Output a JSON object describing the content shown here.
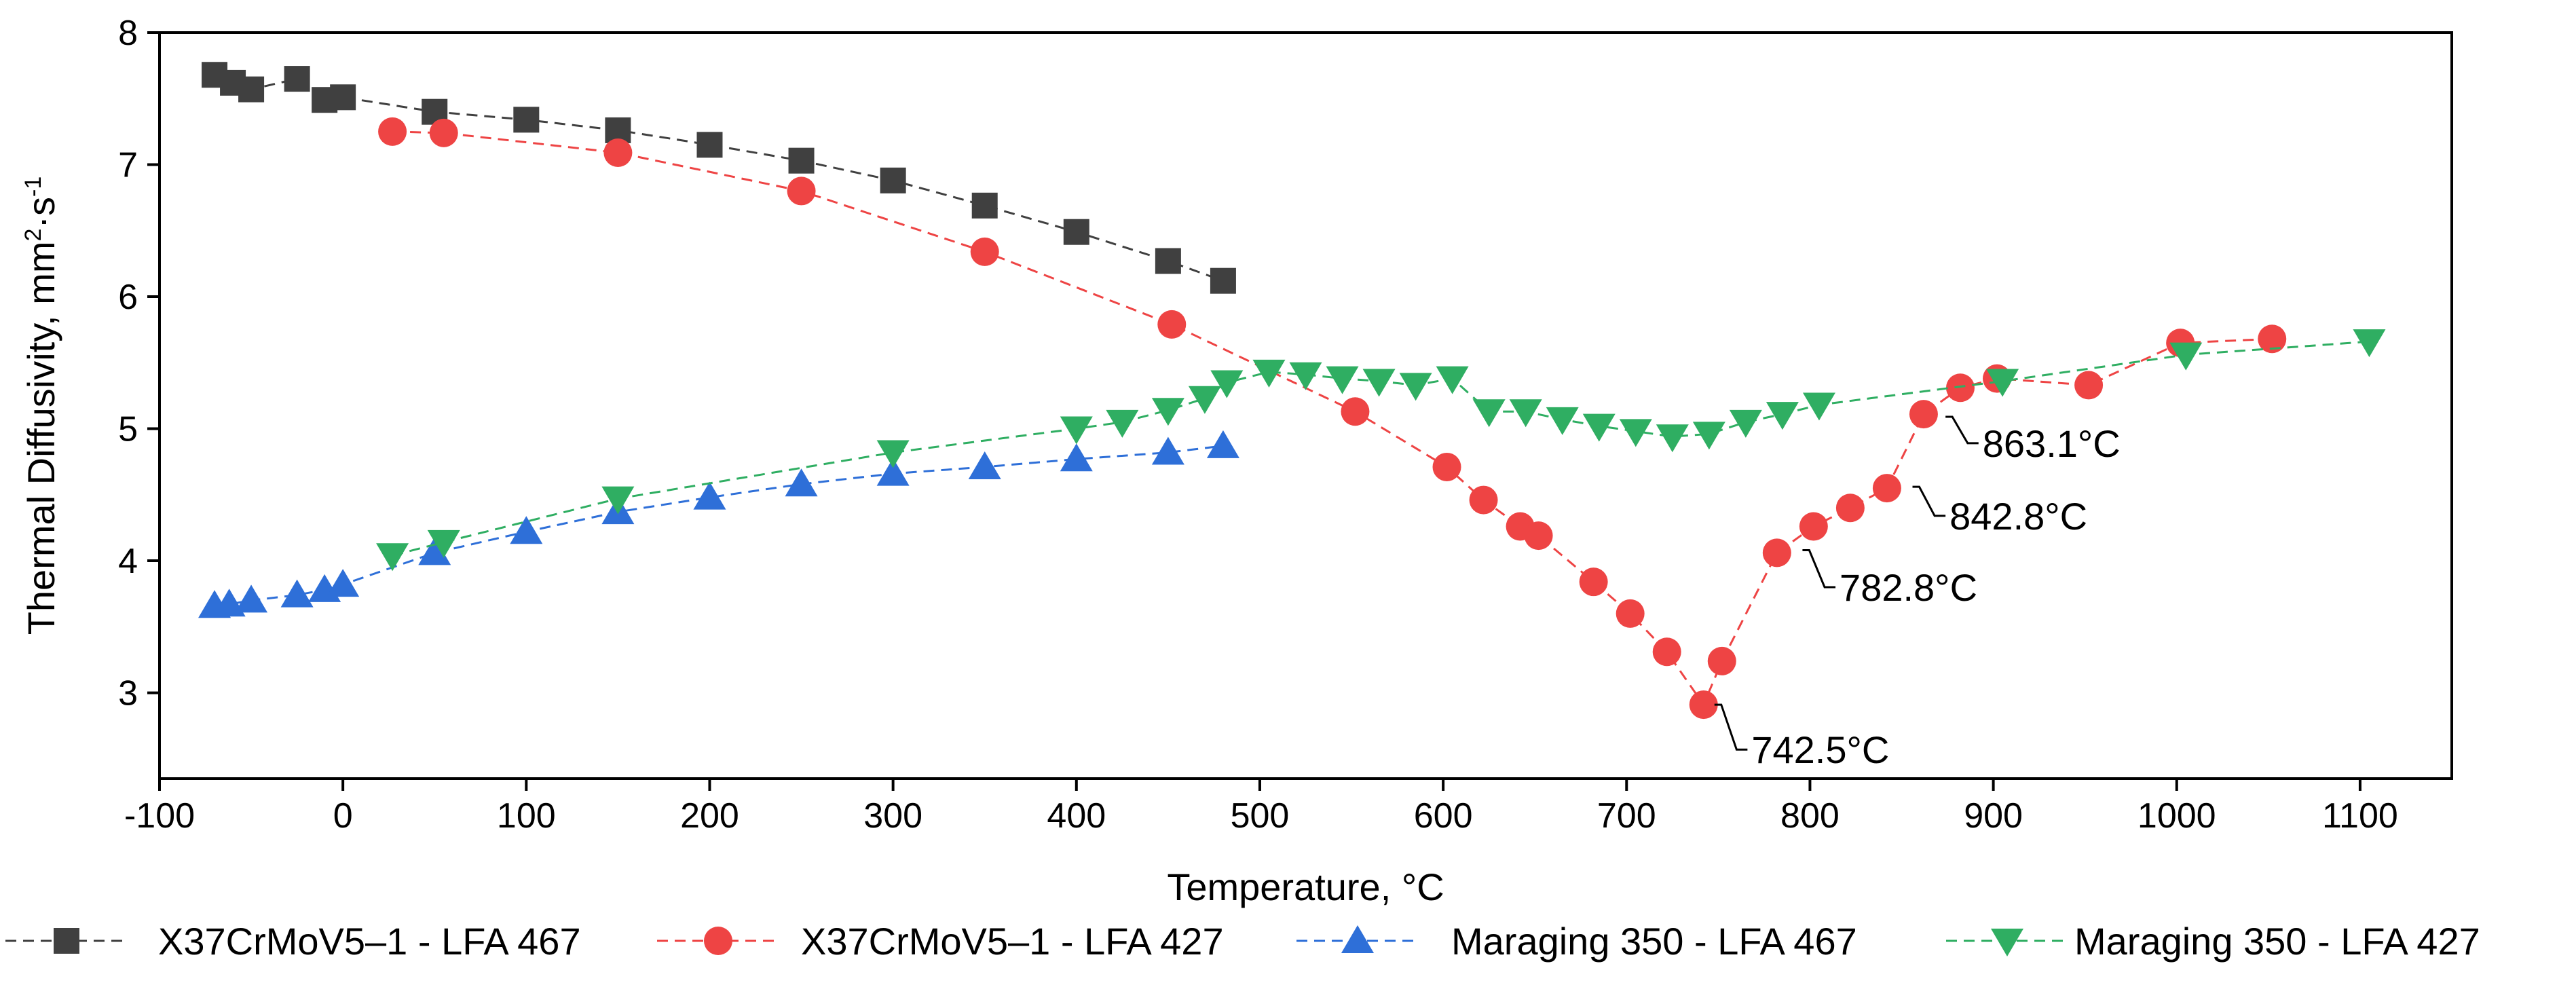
{
  "chart_data": {
    "type": "scatter",
    "xlabel": "Temperature, °C",
    "ylabel_parts": {
      "main": "Thermal Diffusivity, mm",
      "sup1": "2",
      "mid": "·s",
      "sup2": "-1"
    },
    "xlim": [
      -100,
      1150
    ],
    "ylim": [
      2.35,
      8.0
    ],
    "x_ticks": [
      -100,
      0,
      100,
      200,
      300,
      400,
      500,
      600,
      700,
      800,
      900,
      1000,
      1100
    ],
    "x_tick_labels": [
      "-100",
      "0",
      "100",
      "200",
      "300",
      "400",
      "500",
      "600",
      "700",
      "800",
      "900",
      "1000",
      "1100"
    ],
    "y_ticks": [
      3,
      4,
      5,
      6,
      7,
      8
    ],
    "y_tick_labels": [
      "3",
      "4",
      "5",
      "6",
      "7",
      "8"
    ],
    "grid": false,
    "legend_position": "bottom",
    "series": [
      {
        "name": "X37CrMoV5–1 - LFA 467",
        "color": "#404040",
        "marker": "square",
        "line": "dashed",
        "x": [
          -70,
          -60,
          -50,
          -25,
          -10,
          0,
          50,
          100,
          150,
          200,
          250,
          300,
          350,
          400,
          450,
          480
        ],
        "y": [
          7.68,
          7.62,
          7.57,
          7.65,
          7.49,
          7.51,
          7.4,
          7.34,
          7.26,
          7.15,
          7.03,
          6.88,
          6.69,
          6.49,
          6.27,
          6.12
        ]
      },
      {
        "name": "X37CrMoV5–1  - LFA 427",
        "color": "#ee4444",
        "marker": "circle",
        "line": "dashed",
        "x": [
          27,
          55,
          150,
          250,
          350,
          452,
          552,
          602,
          622,
          642,
          652,
          682,
          702,
          722,
          742,
          752,
          782,
          802,
          822,
          842,
          862,
          882,
          902,
          952,
          1002,
          1052
        ],
        "y": [
          7.25,
          7.24,
          7.09,
          6.8,
          6.34,
          5.79,
          5.13,
          4.71,
          4.46,
          4.26,
          4.19,
          3.84,
          3.6,
          3.31,
          2.91,
          3.24,
          4.06,
          4.26,
          4.4,
          4.55,
          5.11,
          5.31,
          5.38,
          5.33,
          5.65,
          5.68
        ]
      },
      {
        "name": "Maraging 350 - LFA 467",
        "color": "#2e6fd8",
        "marker": "triangle-up",
        "line": "dashed",
        "x": [
          -70,
          -62,
          -50,
          -25,
          -10,
          0,
          50,
          100,
          150,
          200,
          250,
          300,
          350,
          400,
          450,
          480
        ],
        "y": [
          3.66,
          3.67,
          3.7,
          3.74,
          3.78,
          3.82,
          4.06,
          4.22,
          4.37,
          4.48,
          4.58,
          4.66,
          4.71,
          4.77,
          4.82,
          4.87
        ]
      },
      {
        "name": "Maraging 350 - LFA 427",
        "color": "#2fae62",
        "marker": "triangle-down",
        "line": "dashed",
        "x": [
          27,
          55,
          150,
          300,
          400,
          425,
          450,
          470,
          482,
          505,
          525,
          545,
          565,
          585,
          605,
          625,
          645,
          665,
          685,
          705,
          725,
          745,
          765,
          785,
          805,
          905,
          1005,
          1105
        ],
        "y": [
          4.04,
          4.14,
          4.47,
          4.82,
          5.0,
          5.05,
          5.14,
          5.23,
          5.35,
          5.43,
          5.41,
          5.38,
          5.36,
          5.33,
          5.38,
          5.13,
          5.13,
          5.07,
          5.02,
          4.98,
          4.94,
          4.96,
          5.05,
          5.11,
          5.18,
          5.36,
          5.56,
          5.66
        ]
      }
    ],
    "annotations": [
      {
        "text": "742.5°C",
        "x": 742,
        "y": 2.91,
        "dx": 18,
        "dy": -0.34
      },
      {
        "text": "782.8°C",
        "x": 790,
        "y": 4.08,
        "dx": 18,
        "dy": -0.28
      },
      {
        "text": "842.8°C",
        "x": 850,
        "y": 4.56,
        "dx": 18,
        "dy": -0.22
      },
      {
        "text": "863.1°C",
        "x": 868,
        "y": 5.09,
        "dx": 18,
        "dy": -0.2
      }
    ]
  }
}
